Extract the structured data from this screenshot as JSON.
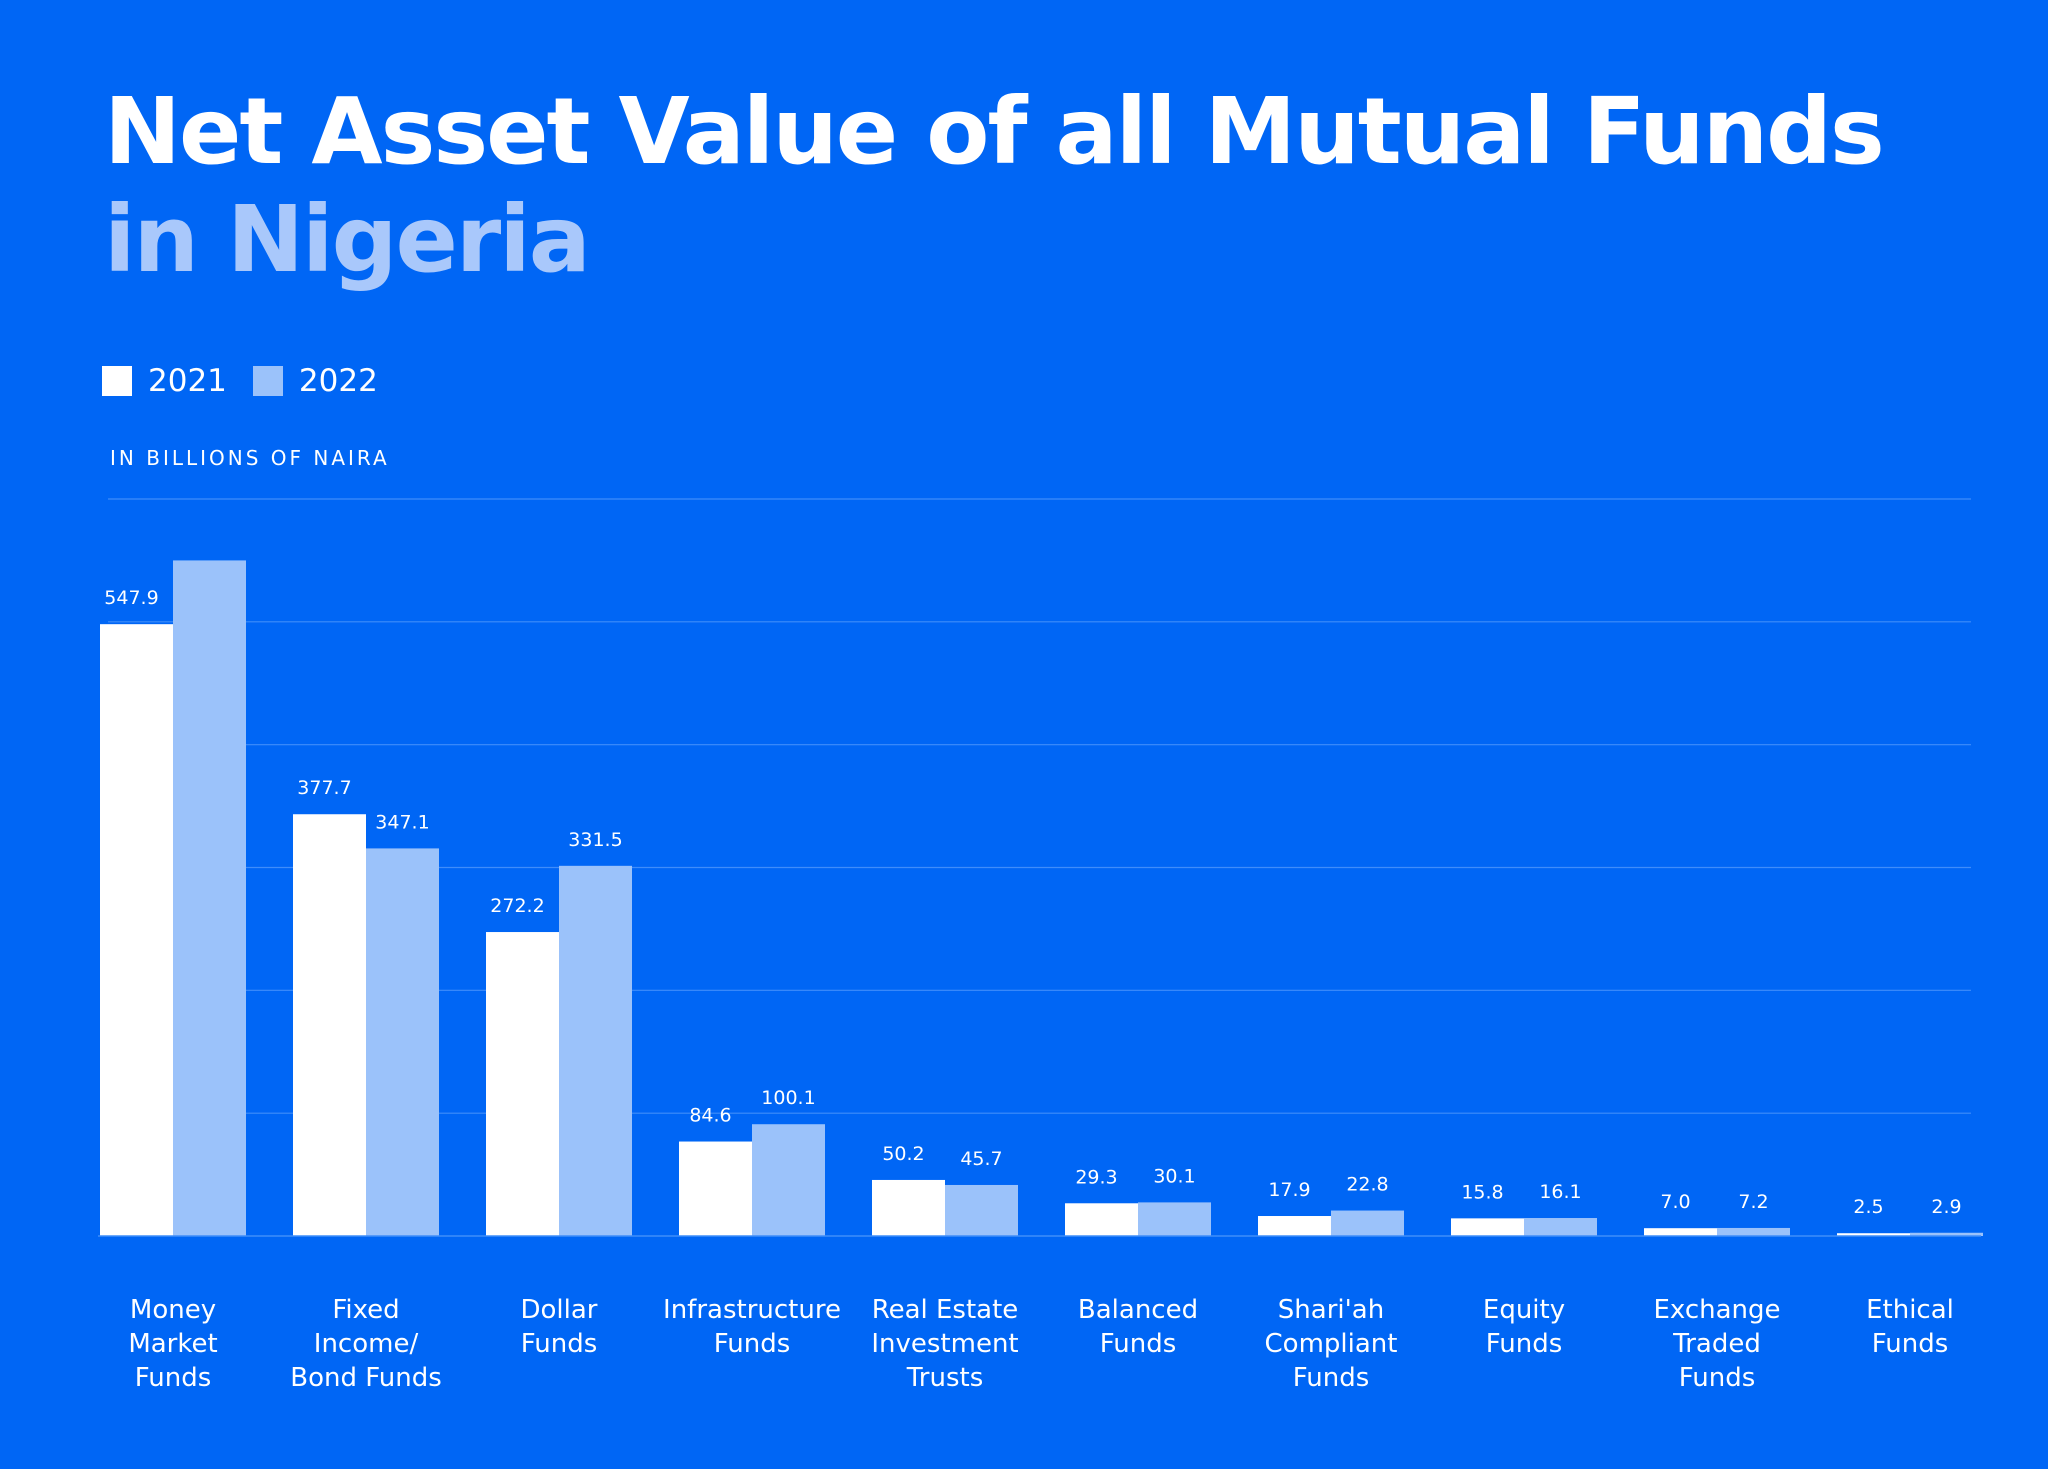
{
  "chart_data": {
    "type": "bar",
    "title": "Net Asset Value of all Mutual Funds",
    "subtitle": "in Nigeria",
    "unit_label": "IN BILLIONS OF NAIRA",
    "categories": [
      [
        "Money",
        "Market",
        "Funds"
      ],
      [
        "Fixed",
        "Income/",
        "Bond Funds"
      ],
      [
        "Dollar",
        "Funds"
      ],
      [
        "Infrastructure",
        "Funds"
      ],
      [
        "Real Estate",
        "Investment",
        "Trusts"
      ],
      [
        "Balanced",
        "Funds"
      ],
      [
        "Shari'ah",
        "Compliant",
        "Funds"
      ],
      [
        "Equity",
        "Funds"
      ],
      [
        "Exchange",
        "Traded",
        "Funds"
      ],
      [
        "Ethical",
        "Funds"
      ]
    ],
    "series": [
      {
        "name": "2021",
        "color": "#ffffff",
        "values": [
          547.9,
          377.7,
          272.2,
          84.6,
          50.2,
          29.3,
          17.9,
          15.8,
          7.0,
          2.5
        ],
        "labels": [
          "547.9",
          "377.7",
          "272.2",
          "84.6",
          "50.2",
          "29.3",
          "17.9",
          "15.8",
          "7.0",
          "2.5"
        ]
      },
      {
        "name": "2022",
        "color": "#9bc2fa",
        "values": [
          605,
          347.1,
          331.5,
          100.1,
          45.7,
          30.1,
          22.8,
          16.1,
          7.2,
          2.9
        ],
        "labels": [
          "",
          "347.1",
          "331.5",
          "100.1",
          "45.7",
          "30.1",
          "22.8",
          "16.1",
          "7.2",
          "2.9"
        ]
      }
    ],
    "ylim": [
      0,
      660
    ],
    "grid": true,
    "legend_position": "top-left"
  },
  "colors": {
    "background": "#0066f5",
    "subtitle": "#a9c8fb",
    "grid": "#3f8dfa"
  }
}
